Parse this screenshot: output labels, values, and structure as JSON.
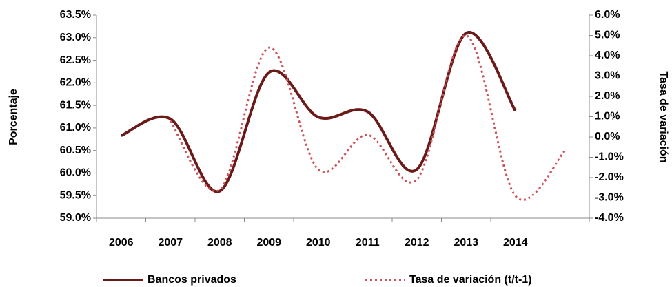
{
  "chart_data": {
    "type": "line",
    "y_label": "Porcentaje",
    "y2_label": "Tasa de variación",
    "categories": [
      "2006",
      "2007",
      "2008",
      "2009",
      "2010",
      "2011",
      "2012",
      "2013",
      "2014",
      null
    ],
    "series": [
      {
        "name": "Bancos privados",
        "color": "#6b1a1a",
        "style": "solid",
        "axis": "y",
        "values": [
          60.83,
          61.2,
          59.6,
          62.23,
          61.24,
          61.36,
          60.08,
          63.1,
          61.38,
          null
        ]
      },
      {
        "name": "Tasa de variación (t/t-1)",
        "color": "#c9555a",
        "style": "dotted",
        "axis": "y2",
        "values": [
          null,
          0.78,
          -2.6,
          4.4,
          -1.6,
          0.1,
          -2.1,
          5.0,
          -2.9,
          -0.7
        ]
      }
    ],
    "ylim": [
      59,
      63.5
    ],
    "yticks": [
      {
        "value": 59,
        "label": "59.0%"
      },
      {
        "value": 59.5,
        "label": "59.5%"
      },
      {
        "value": 60,
        "label": "60.0%"
      },
      {
        "value": 60.5,
        "label": "60.5%"
      },
      {
        "value": 61,
        "label": "61.0%"
      },
      {
        "value": 61.5,
        "label": "61.5%"
      },
      {
        "value": 62,
        "label": "62.0%"
      },
      {
        "value": 62.5,
        "label": "62.5%"
      },
      {
        "value": 63,
        "label": "63.0%"
      },
      {
        "value": 63.5,
        "label": "63.5%"
      }
    ],
    "y2lim": [
      -4,
      6
    ],
    "y2ticks": [
      {
        "value": -4,
        "label": "-4.0%"
      },
      {
        "value": -3,
        "label": "-3.0%"
      },
      {
        "value": -2,
        "label": "-2.0%"
      },
      {
        "value": -1,
        "label": "-1.0%"
      },
      {
        "value": 0,
        "label": "0.0%"
      },
      {
        "value": 1,
        "label": "1.0%"
      },
      {
        "value": 2,
        "label": "2.0%"
      },
      {
        "value": 3,
        "label": "3.0%"
      },
      {
        "value": 4,
        "label": "4.0%"
      },
      {
        "value": 5,
        "label": "5.0%"
      },
      {
        "value": 6,
        "label": "6.0%"
      }
    ],
    "legend": "bottom"
  }
}
